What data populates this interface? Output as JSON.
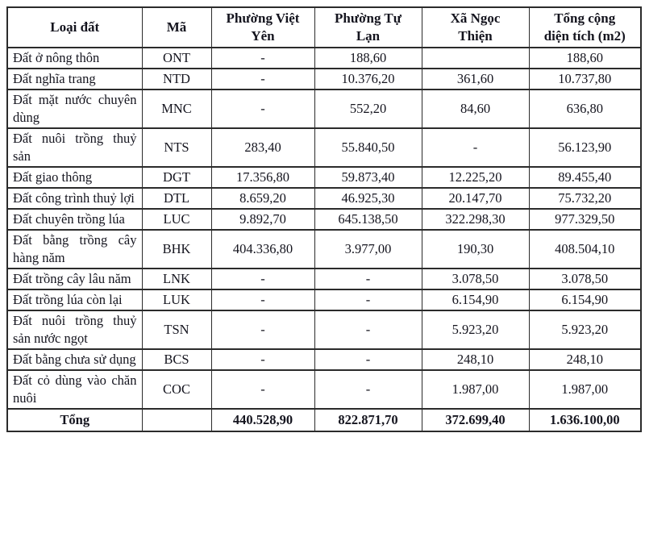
{
  "table": {
    "columns": [
      {
        "label": "Loại đất"
      },
      {
        "label": "Mã"
      },
      {
        "label": "Phường Việt Yên"
      },
      {
        "label": "Phường Tự Lạn"
      },
      {
        "label": "Xã Ngọc Thiện"
      },
      {
        "label": "Tổng cộng diện tích (m2)"
      }
    ],
    "rows": [
      {
        "land_type": "Đất ở nông thôn",
        "code": "ONT",
        "viet_yen": "-",
        "tu_lan": "188,60",
        "ngoc_thien": "",
        "total": "188,60"
      },
      {
        "land_type": "Đất nghĩa trang",
        "code": "NTD",
        "viet_yen": "-",
        "tu_lan": "10.376,20",
        "ngoc_thien": "361,60",
        "total": "10.737,80"
      },
      {
        "land_type": "Đất mặt nước chuyên dùng",
        "code": "MNC",
        "viet_yen": "-",
        "tu_lan": "552,20",
        "ngoc_thien": "84,60",
        "total": "636,80"
      },
      {
        "land_type": "Đất nuôi trồng thuỷ sản",
        "code": "NTS",
        "viet_yen": "283,40",
        "tu_lan": "55.840,50",
        "ngoc_thien": "-",
        "total": "56.123,90"
      },
      {
        "land_type": "Đất giao thông",
        "code": "DGT",
        "viet_yen": "17.356,80",
        "tu_lan": "59.873,40",
        "ngoc_thien": "12.225,20",
        "total": "89.455,40"
      },
      {
        "land_type": "Đất công trình thuỷ lợi",
        "code": "DTL",
        "viet_yen": "8.659,20",
        "tu_lan": "46.925,30",
        "ngoc_thien": "20.147,70",
        "total": "75.732,20"
      },
      {
        "land_type": "Đất chuyên trồng lúa",
        "code": "LUC",
        "viet_yen": "9.892,70",
        "tu_lan": "645.138,50",
        "ngoc_thien": "322.298,30",
        "total": "977.329,50"
      },
      {
        "land_type": "Đất bằng trồng cây hàng năm",
        "code": "BHK",
        "viet_yen": "404.336,80",
        "tu_lan": "3.977,00",
        "ngoc_thien": "190,30",
        "total": "408.504,10"
      },
      {
        "land_type": "Đất trồng cây lâu năm",
        "code": "LNK",
        "viet_yen": "-",
        "tu_lan": "-",
        "ngoc_thien": "3.078,50",
        "total": "3.078,50"
      },
      {
        "land_type": "Đất trồng lúa còn lại",
        "code": "LUK",
        "viet_yen": "-",
        "tu_lan": "-",
        "ngoc_thien": "6.154,90",
        "total": "6.154,90"
      },
      {
        "land_type": "Đất nuôi trồng thuỷ sản nước ngọt",
        "code": "TSN",
        "viet_yen": "-",
        "tu_lan": "-",
        "ngoc_thien": "5.923,20",
        "total": "5.923,20"
      },
      {
        "land_type": "Đất bằng chưa sử dụng",
        "code": "BCS",
        "viet_yen": "-",
        "tu_lan": "-",
        "ngoc_thien": "248,10",
        "total": "248,10"
      },
      {
        "land_type": "Đất cỏ dùng vào chăn nuôi",
        "code": "COC",
        "viet_yen": "-",
        "tu_lan": "-",
        "ngoc_thien": "1.987,00",
        "total": "1.987,00"
      }
    ],
    "total_row": {
      "label": "Tổng",
      "code": "",
      "viet_yen": "440.528,90",
      "tu_lan": "822.871,70",
      "ngoc_thien": "372.699,40",
      "total": "1.636.100,00"
    }
  },
  "colors": {
    "text": "#14141e",
    "border": "#2b2b2b",
    "background": "#ffffff"
  }
}
